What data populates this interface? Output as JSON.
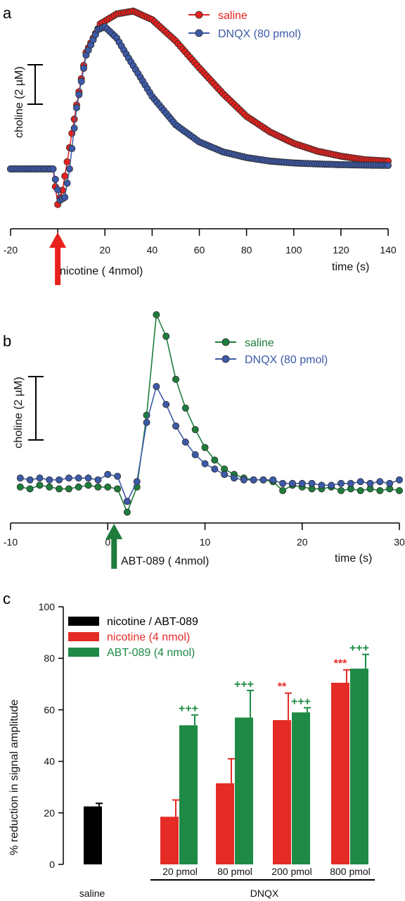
{
  "chart_data": [
    {
      "panel": "a",
      "type": "line",
      "xlabel": "time (s)",
      "ylabel": "choline (2 µM)",
      "xlim": [
        -20,
        140
      ],
      "x_ticks": [
        "-20",
        "0",
        "20",
        "40",
        "60",
        "80",
        "100",
        "120",
        "140"
      ],
      "scale_bar": "2 µM",
      "ylim": [
        -3,
        11
      ],
      "annotation": "nicotine ( 4nmol)",
      "annotation_x": 0,
      "annotation_color": "#e8211d",
      "series": [
        {
          "name": "saline",
          "color": "#e8211d",
          "start": -20,
          "step": 1,
          "points": [
            {
              "x": -2,
              "y": 0
            },
            {
              "x": 0,
              "y": -2.5
            },
            {
              "x": 2,
              "y": -1.5
            },
            {
              "x": 4,
              "y": 0.5
            },
            {
              "x": 8,
              "y": 4.5
            },
            {
              "x": 12,
              "y": 8.2
            },
            {
              "x": 18,
              "y": 10.2
            },
            {
              "x": 25,
              "y": 10.9
            },
            {
              "x": 32,
              "y": 11.1
            },
            {
              "x": 40,
              "y": 10.5
            },
            {
              "x": 50,
              "y": 9.0
            },
            {
              "x": 60,
              "y": 7.1
            },
            {
              "x": 70,
              "y": 5.3
            },
            {
              "x": 80,
              "y": 3.7
            },
            {
              "x": 90,
              "y": 2.6
            },
            {
              "x": 100,
              "y": 1.8
            },
            {
              "x": 110,
              "y": 1.25
            },
            {
              "x": 120,
              "y": 0.9
            },
            {
              "x": 130,
              "y": 0.65
            },
            {
              "x": 140,
              "y": 0.55
            }
          ]
        },
        {
          "name": "DNQX (80 pmol)",
          "color": "#3d5aa8",
          "start": -20,
          "step": 1,
          "points": [
            {
              "x": -2,
              "y": 0
            },
            {
              "x": 1,
              "y": -2.2
            },
            {
              "x": 3,
              "y": -2.0
            },
            {
              "x": 5,
              "y": 0
            },
            {
              "x": 8,
              "y": 4.3
            },
            {
              "x": 12,
              "y": 8.0
            },
            {
              "x": 17,
              "y": 9.8
            },
            {
              "x": 20,
              "y": 10.0
            },
            {
              "x": 25,
              "y": 9.2
            },
            {
              "x": 30,
              "y": 7.8
            },
            {
              "x": 40,
              "y": 5.1
            },
            {
              "x": 50,
              "y": 3.1
            },
            {
              "x": 60,
              "y": 1.9
            },
            {
              "x": 70,
              "y": 1.2
            },
            {
              "x": 80,
              "y": 0.8
            },
            {
              "x": 90,
              "y": 0.55
            },
            {
              "x": 100,
              "y": 0.42
            },
            {
              "x": 110,
              "y": 0.35
            },
            {
              "x": 120,
              "y": 0.3
            },
            {
              "x": 130,
              "y": 0.27
            },
            {
              "x": 140,
              "y": 0.25
            }
          ]
        }
      ]
    },
    {
      "panel": "b",
      "type": "line",
      "xlabel": "time (s)",
      "ylabel": "choline (2 µM)",
      "xlim": [
        -10,
        30
      ],
      "x_ticks": [
        "-10",
        "0",
        "10",
        "20",
        "30"
      ],
      "scale_bar": "2 µM",
      "ylim": [
        -1,
        5.5
      ],
      "annotation": "ABT-089 ( 4nmol)",
      "annotation_x": 0,
      "annotation_color": "#1e7d3c",
      "series": [
        {
          "name": "saline",
          "color": "#1e7d3c",
          "x": [
            -9,
            -8,
            -7,
            -6,
            -5,
            -4,
            -3,
            -2,
            -1,
            0,
            1,
            2,
            3,
            4,
            5,
            6,
            7,
            8,
            9,
            10,
            11,
            12,
            13,
            14,
            15,
            16,
            17,
            18,
            19,
            20,
            21,
            22,
            23,
            24,
            25,
            26,
            27,
            28,
            29,
            30
          ],
          "y": [
            0.1,
            0.05,
            0.15,
            0.1,
            0.05,
            0.05,
            0.1,
            0.15,
            0.1,
            0.1,
            0.05,
            -0.6,
            0.1,
            2.1,
            4.9,
            4.3,
            3.1,
            2.3,
            1.7,
            1.2,
            0.85,
            0.6,
            0.45,
            0.35,
            0.3,
            0.3,
            0.25,
            0.0,
            0.15,
            0.1,
            0.05,
            0.05,
            0.1,
            0.0,
            0.05,
            0.0,
            0.05,
            0.0,
            0.05,
            0.0
          ]
        },
        {
          "name": "DNQX (80 pmol)",
          "color": "#3d5aa8",
          "x": [
            -9,
            -8,
            -7,
            -6,
            -5,
            -4,
            -3,
            -2,
            -1,
            0,
            1,
            2,
            3,
            4,
            5,
            6,
            7,
            8,
            9,
            10,
            11,
            12,
            13,
            14,
            15,
            16,
            17,
            18,
            19,
            20,
            21,
            22,
            23,
            24,
            25,
            26,
            27,
            28,
            29,
            30
          ],
          "y": [
            0.35,
            0.3,
            0.35,
            0.3,
            0.3,
            0.35,
            0.35,
            0.35,
            0.3,
            0.45,
            0.4,
            -0.3,
            0.25,
            1.9,
            2.9,
            2.4,
            1.8,
            1.35,
            1.0,
            0.75,
            0.6,
            0.45,
            0.35,
            0.3,
            0.3,
            0.3,
            0.3,
            0.2,
            0.2,
            0.2,
            0.2,
            0.15,
            0.15,
            0.2,
            0.2,
            0.25,
            0.2,
            0.25,
            0.2,
            0.3
          ]
        }
      ]
    },
    {
      "panel": "c",
      "type": "bar",
      "ylabel": "% reduction in signal amplitude",
      "ylim": [
        0,
        100
      ],
      "y_ticks": [
        "0",
        "20",
        "40",
        "60",
        "80",
        "100"
      ],
      "legend": [
        {
          "name": "nicotine / ABT-089",
          "color": "#000000"
        },
        {
          "name": "nicotine (4 nmol)",
          "color": "#e52b26"
        },
        {
          "name": "ABT-089 (4 nmol)",
          "color": "#1e8a45"
        }
      ],
      "group_labels": [
        "saline",
        "20 pmol",
        "80 pmol",
        "200 pmol",
        "800 pmol"
      ],
      "dnqx_label": "DNQX",
      "bars": [
        {
          "group": "saline",
          "series": "nicotine / ABT-089",
          "color": "#000000",
          "value": 22.5,
          "error": 1.2,
          "sig": ""
        },
        {
          "group": "20 pmol",
          "series": "nicotine (4 nmol)",
          "color": "#e52b26",
          "value": 18.5,
          "error": 6.5,
          "sig": ""
        },
        {
          "group": "20 pmol",
          "series": "ABT-089 (4 nmol)",
          "color": "#1e8a45",
          "value": 54,
          "error": 4,
          "sig": "+++"
        },
        {
          "group": "80 pmol",
          "series": "nicotine (4 nmol)",
          "color": "#e52b26",
          "value": 31.5,
          "error": 9.5,
          "sig": ""
        },
        {
          "group": "80 pmol",
          "series": "ABT-089 (4 nmol)",
          "color": "#1e8a45",
          "value": 57,
          "error": 10.5,
          "sig": "+++"
        },
        {
          "group": "200 pmol",
          "series": "nicotine (4 nmol)",
          "color": "#e52b26",
          "value": 56,
          "error": 10.5,
          "sig": "**"
        },
        {
          "group": "200 pmol",
          "series": "ABT-089 (4 nmol)",
          "color": "#1e8a45",
          "value": 59,
          "error": 1.8,
          "sig": "+++"
        },
        {
          "group": "800 pmol",
          "series": "nicotine (4 nmol)",
          "color": "#e52b26",
          "value": 70.5,
          "error": 5,
          "sig": "***"
        },
        {
          "group": "800 pmol",
          "series": "ABT-089 (4 nmol)",
          "color": "#1e8a45",
          "value": 76,
          "error": 5.5,
          "sig": "+++"
        }
      ]
    }
  ]
}
